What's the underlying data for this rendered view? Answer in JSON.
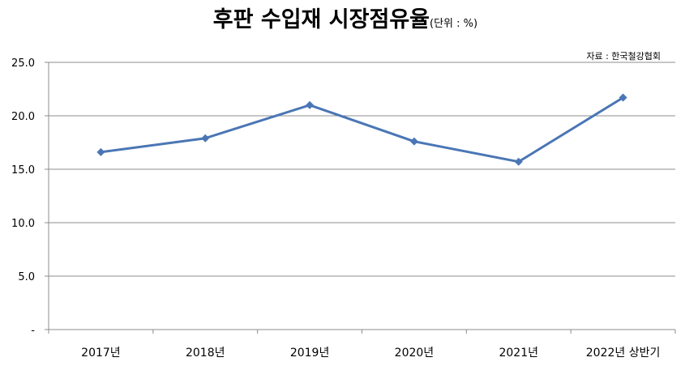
{
  "chart_data": {
    "type": "line",
    "title": "후판 수입재 시장점유율",
    "subtitle": "(단위 : %)",
    "source": "자료 : 한국철강협회",
    "categories": [
      "2017년",
      "2018년",
      "2019년",
      "2020년",
      "2021년",
      "2022년 상반기"
    ],
    "series": [
      {
        "values": [
          16.6,
          17.9,
          21.0,
          17.6,
          15.7,
          21.7
        ]
      }
    ],
    "ylim": [
      0,
      25
    ],
    "yticks": [
      0,
      5,
      10,
      15,
      20,
      25
    ],
    "ytick_labels": [
      "-",
      "5.0",
      "10.0",
      "15.0",
      "20.0",
      "25.0"
    ],
    "xlabel": "",
    "ylabel": "",
    "grid": true,
    "marker": "diamond",
    "colors": {
      "line": "#4a76b5",
      "grid": "#8c8c8c"
    }
  }
}
